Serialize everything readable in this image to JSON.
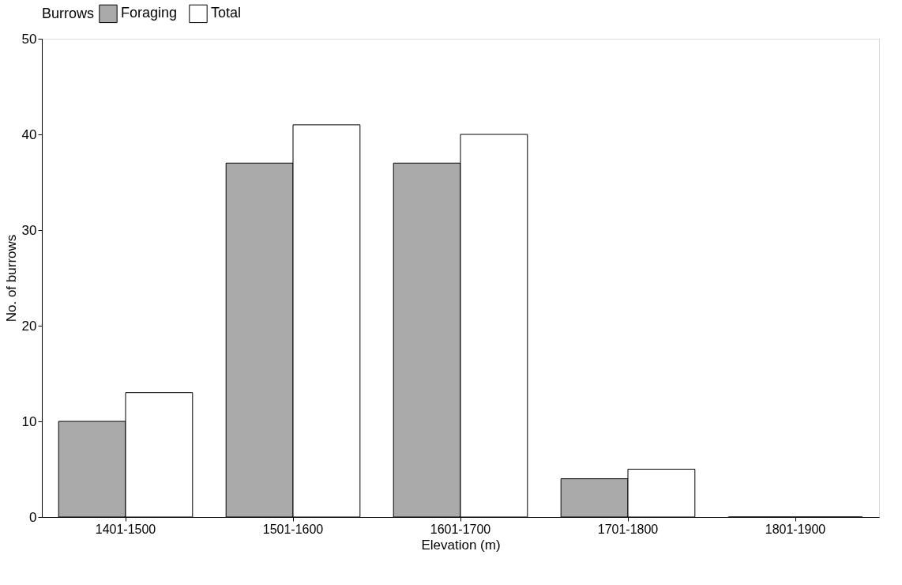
{
  "chart_data": {
    "type": "bar",
    "xlabel": "Elevation (m)",
    "ylabel": "No. of burrows",
    "legend_title": "Burrows",
    "legend": "top",
    "categories": [
      "1401-1500",
      "1501-1600",
      "1601-1700",
      "1701-1800",
      "1801-1900"
    ],
    "series": [
      {
        "name": "Foraging",
        "color": "#aaaaaa",
        "values": [
          10,
          37,
          37,
          4,
          0
        ]
      },
      {
        "name": "Total",
        "color": "#ffffff",
        "values": [
          13,
          41,
          40,
          5,
          0
        ]
      }
    ],
    "ylim": [
      0,
      50
    ],
    "yticks": [
      0,
      10,
      20,
      30,
      40,
      50
    ],
    "grid": false
  }
}
